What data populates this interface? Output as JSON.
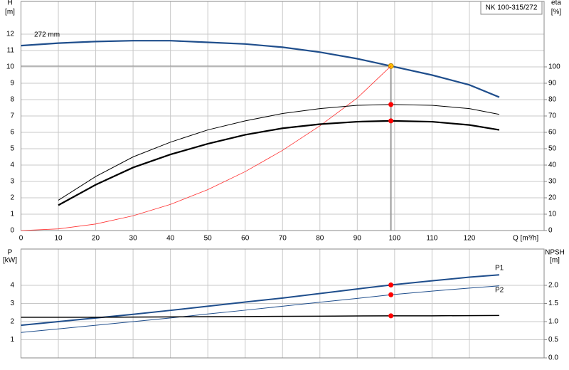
{
  "chart_data": [
    {
      "type": "line",
      "title": "NK 100-315/272",
      "ylabel": "H",
      "yunit": "[m]",
      "y2label": "eta",
      "y2unit": "[%]",
      "xlabel": "Q [m³/h]",
      "xlim": [
        0,
        140
      ],
      "xticks": [
        0,
        10,
        20,
        30,
        40,
        50,
        60,
        70,
        80,
        90,
        100,
        110,
        120
      ],
      "xtick_labels": true,
      "ylim": [
        0,
        14
      ],
      "yticks": [
        0,
        1,
        2,
        3,
        4,
        5,
        6,
        7,
        8,
        9,
        10,
        11,
        12
      ],
      "y2lim": [
        0,
        140
      ],
      "y2ticks": [
        0,
        10,
        20,
        30,
        40,
        50,
        60,
        70,
        80,
        90,
        100
      ],
      "grid": true,
      "marker_x": 99,
      "series": [
        {
          "name": "272 mm",
          "color": "#1f4e8c",
          "width": 2.2,
          "marker_color": "#ffc000",
          "x": [
            0,
            10,
            20,
            30,
            40,
            50,
            60,
            70,
            80,
            90,
            99,
            110,
            120,
            128
          ],
          "values": [
            11.3,
            11.45,
            11.55,
            11.6,
            11.6,
            11.5,
            11.4,
            11.2,
            10.9,
            10.5,
            10.05,
            9.5,
            8.9,
            8.15
          ]
        },
        {
          "color": "#ff3030",
          "width": 0.8,
          "x": [
            0,
            10,
            20,
            30,
            40,
            50,
            60,
            70,
            80,
            90,
            99
          ],
          "values": [
            0,
            0.1,
            0.4,
            0.9,
            1.6,
            2.5,
            3.6,
            4.9,
            6.4,
            8.1,
            10.05
          ]
        },
        {
          "color": "#000000",
          "width": 1,
          "axis": "y2",
          "marker_color": "#ff0000",
          "x": [
            10,
            20,
            30,
            40,
            50,
            60,
            70,
            80,
            90,
            99,
            110,
            120,
            128
          ],
          "values": [
            18.5,
            33,
            45,
            54,
            61.5,
            67,
            71.5,
            74.5,
            76.5,
            77,
            76.5,
            74.5,
            71
          ]
        },
        {
          "color": "#000000",
          "width": 2.2,
          "axis": "y2",
          "marker_color": "#ff0000",
          "x": [
            10,
            20,
            30,
            40,
            50,
            60,
            70,
            80,
            90,
            99,
            110,
            120,
            128
          ],
          "values": [
            15.5,
            28,
            38.5,
            46.5,
            53,
            58.5,
            62.5,
            65,
            66.5,
            67,
            66.5,
            64.5,
            61.5
          ]
        }
      ]
    },
    {
      "type": "line",
      "ylabel": "P",
      "yunit": "[kW]",
      "y2label": "NPSH",
      "y2unit": "[m]",
      "xlim": [
        0,
        140
      ],
      "xticks": [
        0,
        10,
        20,
        30,
        40,
        50,
        60,
        70,
        80,
        90,
        100,
        110,
        120
      ],
      "xtick_labels": false,
      "ylim": [
        0,
        6
      ],
      "yticks": [
        1,
        2,
        3,
        4
      ],
      "y2lim": [
        0,
        3
      ],
      "y2ticks": [
        {
          "value": 0,
          "label": "0.0"
        },
        {
          "value": 0.5,
          "label": "0.5"
        },
        {
          "value": 1,
          "label": "1.0"
        },
        {
          "value": 1.5,
          "label": "1.5"
        },
        {
          "value": 2,
          "label": "2.0"
        }
      ],
      "grid": true,
      "marker_x": 99,
      "series": [
        {
          "name": "P1",
          "color": "#1f4e8c",
          "width": 2,
          "marker_color": "#ff0000",
          "x": [
            0,
            10,
            20,
            30,
            40,
            50,
            60,
            70,
            80,
            90,
            99,
            110,
            120,
            128
          ],
          "values": [
            1.8,
            2.0,
            2.2,
            2.4,
            2.62,
            2.85,
            3.08,
            3.3,
            3.55,
            3.8,
            4.02,
            4.25,
            4.45,
            4.58
          ]
        },
        {
          "name": "P2",
          "color": "#1f4e8c",
          "width": 1,
          "marker_color": "#ff0000",
          "x": [
            0,
            10,
            20,
            30,
            40,
            50,
            60,
            70,
            80,
            90,
            99,
            110,
            120,
            128
          ],
          "values": [
            1.4,
            1.6,
            1.8,
            2.0,
            2.2,
            2.42,
            2.63,
            2.85,
            3.07,
            3.28,
            3.48,
            3.68,
            3.85,
            3.97
          ]
        },
        {
          "color": "#000000",
          "width": 1.5,
          "axis": "y2",
          "marker_color": "#ff0000",
          "x": [
            0,
            20,
            40,
            60,
            80,
            99,
            110,
            128
          ],
          "values": [
            1.12,
            1.12,
            1.13,
            1.14,
            1.15,
            1.16,
            1.16,
            1.17
          ]
        }
      ]
    }
  ]
}
